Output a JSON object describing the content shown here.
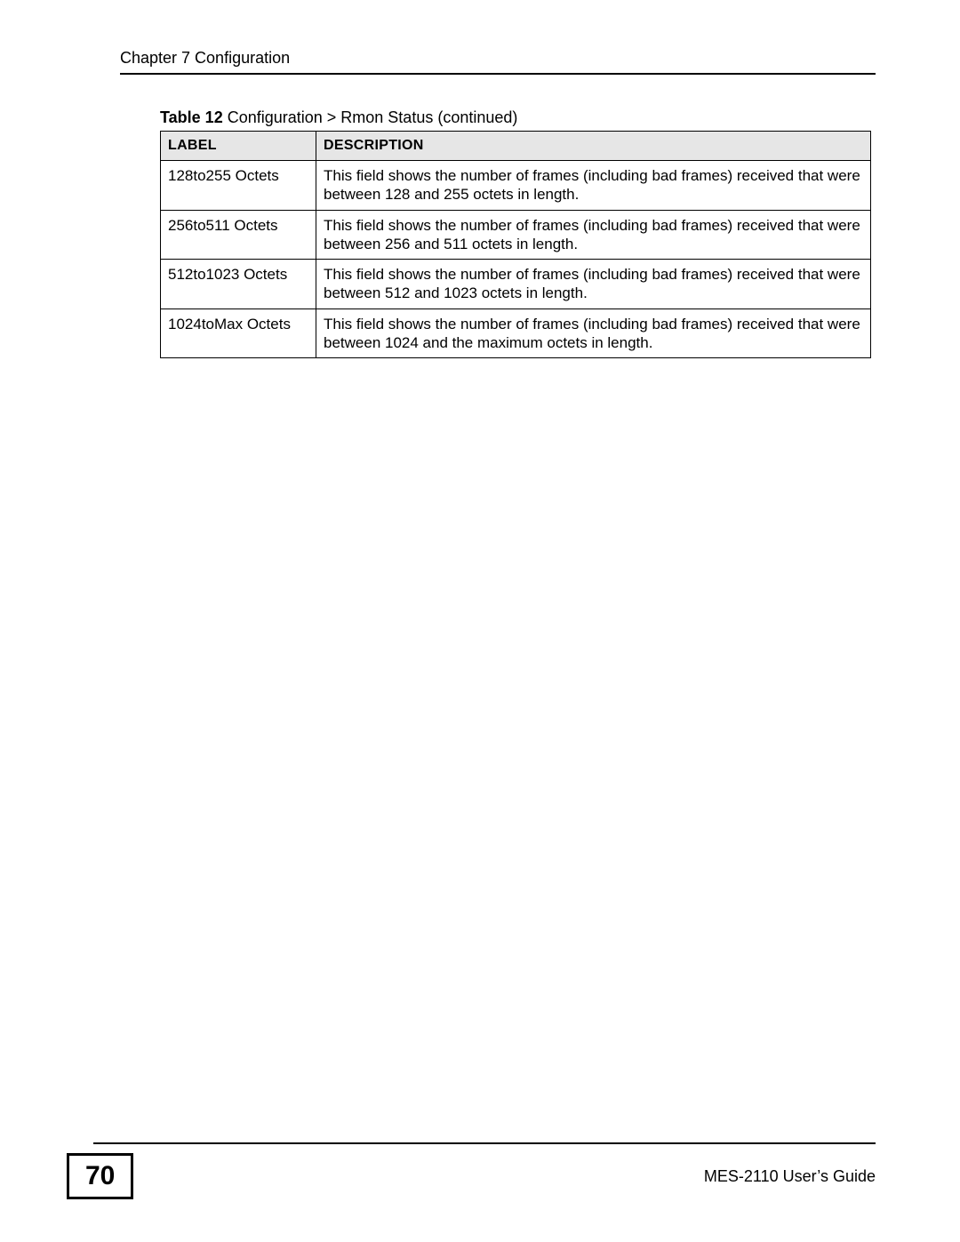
{
  "header": {
    "chapter": "Chapter 7 Configuration"
  },
  "table": {
    "caption_prefix": "Table 12",
    "caption_rest": "   Configuration > Rmon Status  (continued)",
    "columns": [
      "Label",
      "Description"
    ],
    "rows": [
      {
        "label": "128to255 Octets",
        "desc": "This field shows the number of frames (including bad frames) received that were between 128 and 255 octets in length."
      },
      {
        "label": "256to511 Octets",
        "desc": "This field shows the number of frames (including bad frames) received that were between 256 and 511 octets in length."
      },
      {
        "label": "512to1023 Octets",
        "desc": "This field shows the number of frames (including bad frames) received that were between 512 and 1023 octets in length."
      },
      {
        "label": "1024toMax Octets",
        "desc": "This field shows the number of frames (including bad frames) received that were between 1024 and the maximum octets in length."
      }
    ]
  },
  "footer": {
    "page_number": "70",
    "guide": "MES-2110 User’s Guide"
  }
}
